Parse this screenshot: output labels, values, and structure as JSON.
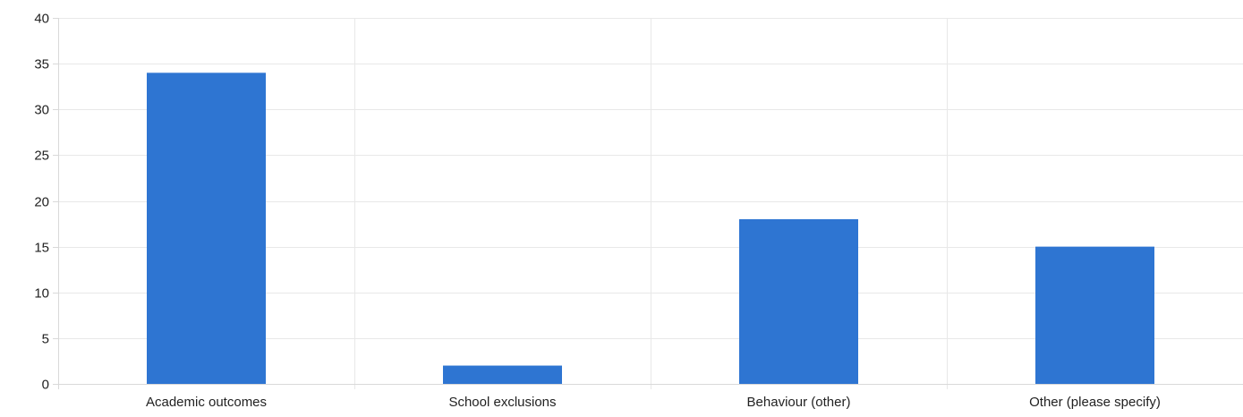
{
  "chart_data": {
    "type": "bar",
    "title": "",
    "xlabel": "",
    "ylabel": "",
    "categories": [
      "Academic outcomes",
      "School exclusions",
      "Behaviour (other)",
      "Other (please specify)"
    ],
    "values": [
      34,
      2,
      18,
      15
    ],
    "ylim": [
      0,
      40
    ],
    "yticks": [
      0,
      5,
      10,
      15,
      20,
      25,
      30,
      35,
      40
    ],
    "grid": true,
    "legend": "none",
    "bar_color": "#2e75d2"
  }
}
